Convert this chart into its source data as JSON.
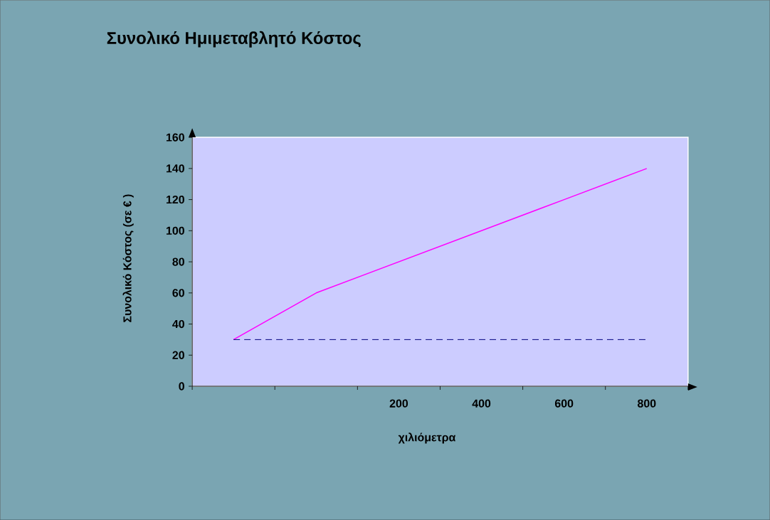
{
  "chart_data": {
    "type": "line",
    "title": "Συνολικό Ημιμεταβλητό Κόστος",
    "xlabel": "χιλιόμετρα",
    "ylabel": "Συνολικό Κόστος (σε € )",
    "categories": [
      null,
      null,
      "200",
      "400",
      "600",
      "800"
    ],
    "series": [
      {
        "color": "#ff00ff",
        "line_style": "solid",
        "values": [
          30,
          60,
          80,
          100,
          120,
          140
        ]
      },
      {
        "color": "#000080",
        "line_style": "dashed",
        "values": [
          30,
          30,
          30,
          30,
          30,
          30
        ]
      }
    ],
    "ylim": [
      0,
      160
    ],
    "yticks": [
      0,
      20,
      40,
      60,
      80,
      100,
      120,
      140,
      160
    ]
  }
}
